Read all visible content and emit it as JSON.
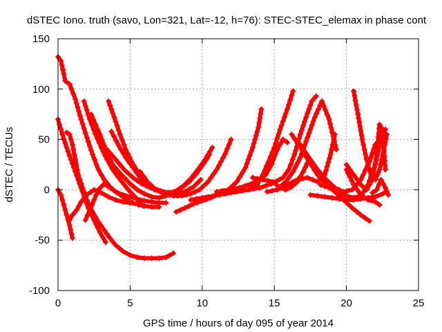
{
  "chart_data": {
    "type": "line",
    "title": "dSTEC Iono. truth (savo, Lon=321, Lat=-12, h=76): STEC-STEC_elemax in phase cont",
    "xlabel": "GPS time / hours of day 095 of year 2014",
    "ylabel": "dSTEC  / TECUs",
    "xlim": [
      0,
      25
    ],
    "ylim": [
      -100,
      150
    ],
    "xticks": [
      0,
      5,
      10,
      15,
      20,
      25
    ],
    "yticks": [
      -100,
      -50,
      0,
      50,
      100,
      150
    ],
    "xtick_labels": [
      "0",
      "5",
      "10",
      "15",
      "20",
      "25"
    ],
    "ytick_labels": [
      "-100",
      "-50",
      "0",
      "50",
      "100",
      "150"
    ],
    "grid": true,
    "legend": "none",
    "series_color": "#ff0000",
    "marker": "plus",
    "series": [
      {
        "x": [
          0.0,
          0.2,
          0.4,
          0.6,
          0.8,
          1.0
        ],
        "y": [
          0,
          -5,
          -15,
          -25,
          -35,
          -48
        ]
      },
      {
        "x": [
          0.0,
          0.3,
          0.6,
          0.9,
          1.2,
          1.5,
          1.8,
          2.1,
          2.5,
          2.9,
          3.3
        ],
        "y": [
          70,
          55,
          42,
          30,
          18,
          6,
          -6,
          -18,
          -30,
          -42,
          -52
        ]
      },
      {
        "x": [
          0.0,
          0.2,
          0.4,
          0.5,
          0.8,
          1.2,
          1.6,
          2.0,
          2.4,
          2.8,
          3.2,
          3.6,
          4.0,
          4.5,
          5.0,
          5.5,
          6.0,
          6.5,
          7.0,
          7.5
        ],
        "y": [
          132,
          128,
          115,
          108,
          105,
          90,
          70,
          52,
          35,
          20,
          10,
          3,
          -2,
          -5,
          -7,
          -9,
          -11,
          -12,
          -13,
          -13
        ]
      },
      {
        "x": [
          0.6,
          0.8,
          1.0,
          1.2,
          1.4,
          1.7,
          2.0,
          2.4,
          2.8,
          3.2,
          3.6,
          4.0,
          4.5,
          5.0,
          5.5,
          6.0,
          6.5,
          7.0,
          7.5,
          8.0
        ],
        "y": [
          57,
          55,
          45,
          30,
          15,
          2,
          -10,
          -22,
          -32,
          -40,
          -48,
          -55,
          -61,
          -65,
          -67,
          -68,
          -68,
          -68,
          -67,
          -63
        ]
      },
      {
        "x": [
          0.8,
          1.0,
          1.3,
          1.6,
          2.0,
          2.5,
          3.0,
          3.5,
          4.0,
          4.5,
          5.0,
          5.5,
          5.9
        ],
        "y": [
          -30,
          -25,
          -20,
          -12,
          -5,
          0,
          -3,
          -7,
          -10,
          -12,
          -13,
          -14,
          -16
        ]
      },
      {
        "x": [
          1.8,
          2.2,
          2.6,
          3.0,
          3.4,
          3.8,
          4.2,
          4.6,
          5.0,
          5.4,
          5.8
        ],
        "y": [
          88,
          70,
          55,
          42,
          30,
          20,
          12,
          5,
          -2,
          -8,
          -15
        ]
      },
      {
        "x": [
          2.3,
          2.6,
          2.9,
          3.2,
          3.5,
          3.8,
          4.2,
          4.6,
          5.0,
          5.5,
          6.0,
          6.5,
          7.0,
          7.5
        ],
        "y": [
          75,
          65,
          55,
          44,
          33,
          25,
          18,
          12,
          6,
          0,
          -4,
          -7,
          -8,
          -6
        ]
      },
      {
        "x": [
          1.9,
          2.2,
          2.5,
          2.8,
          3.2,
          3.6,
          4.0,
          4.4,
          4.8,
          5.2,
          5.6,
          6.0,
          6.5,
          7.0
        ],
        "y": [
          -30,
          -20,
          -10,
          0,
          6,
          2,
          -2,
          -6,
          -10,
          -13,
          -15,
          -16,
          -17,
          -17
        ]
      },
      {
        "x": [
          3.5,
          3.9,
          4.3,
          4.7,
          5.1,
          5.6,
          6.1,
          6.6,
          7.1,
          7.6,
          8.1,
          8.6,
          9.1,
          9.6,
          10.1,
          10.5
        ],
        "y": [
          88,
          72,
          55,
          40,
          28,
          16,
          7,
          2,
          -1,
          -3,
          -2,
          2,
          8,
          16,
          26,
          35
        ]
      },
      {
        "x": [
          3.7,
          4.2,
          4.7,
          5.2,
          5.7,
          6.2,
          6.7,
          7.2,
          7.7,
          8.2,
          8.7,
          9.2,
          9.7,
          10.2,
          10.7
        ],
        "y": [
          58,
          44,
          32,
          22,
          12,
          5,
          0,
          -2,
          -3,
          -1,
          4,
          11,
          20,
          30,
          42
        ]
      },
      {
        "x": [
          3.4,
          4.0,
          4.6,
          5.2,
          5.8,
          6.4,
          7.0,
          7.6,
          8.2,
          8.8,
          9.4,
          9.9
        ],
        "y": [
          40,
          30,
          20,
          12,
          6,
          2,
          -1,
          -3,
          -4,
          -2,
          3,
          10
        ]
      },
      {
        "x": [
          5.7,
          6.2,
          6.8,
          7.4,
          8.0,
          8.6,
          9.2,
          9.8,
          10.4,
          11.0,
          11.6,
          12.0
        ],
        "y": [
          18,
          8,
          0,
          -4,
          -6,
          -6,
          -4,
          0,
          8,
          20,
          36,
          50
        ]
      },
      {
        "x": [
          8.2,
          8.8,
          9.4,
          10.0,
          10.6,
          11.2,
          11.8,
          12.4,
          13.0,
          13.5,
          13.9,
          14.1
        ],
        "y": [
          -22,
          -18,
          -14,
          -11,
          -8,
          -4,
          0,
          8,
          22,
          42,
          62,
          80
        ]
      },
      {
        "x": [
          9.2,
          10.0,
          10.8,
          11.6,
          12.4,
          13.2,
          13.8,
          14.2,
          14.6,
          15.0,
          15.4,
          15.9,
          16.3
        ],
        "y": [
          -10,
          -8,
          -6,
          -4,
          -2,
          0,
          5,
          15,
          28,
          42,
          60,
          80,
          98
        ]
      },
      {
        "x": [
          11.0,
          11.8,
          12.6,
          13.4,
          14.0,
          14.4,
          14.8,
          15.2,
          15.6,
          15.9
        ],
        "y": [
          -2,
          0,
          2,
          6,
          10,
          15,
          25,
          40,
          50,
          47
        ]
      },
      {
        "x": [
          13.2,
          14.0,
          14.8,
          15.6,
          16.0,
          16.4,
          16.8,
          17.2,
          17.6,
          17.9
        ],
        "y": [
          0,
          2,
          6,
          12,
          20,
          35,
          55,
          72,
          88,
          93
        ]
      },
      {
        "x": [
          13.5,
          14.2,
          14.9,
          15.4,
          15.8,
          16.2,
          16.6,
          17.0,
          17.4
        ],
        "y": [
          12,
          10,
          8,
          2,
          0,
          3,
          8,
          18,
          30
        ]
      },
      {
        "x": [
          14.5,
          15.2,
          15.9,
          16.6,
          17.3,
          18.0,
          18.5,
          18.9,
          19.2
        ],
        "y": [
          -2,
          0,
          5,
          10,
          12,
          8,
          15,
          35,
          55
        ]
      },
      {
        "x": [
          15.3,
          15.8,
          16.3,
          16.8,
          17.3,
          17.8,
          18.3,
          18.8,
          19.3
        ],
        "y": [
          2,
          8,
          18,
          32,
          52,
          72,
          88,
          70,
          40
        ]
      },
      {
        "x": [
          16.2,
          16.8,
          17.4,
          18.0,
          18.6,
          19.2,
          19.8,
          20.4,
          21.0,
          21.6
        ],
        "y": [
          55,
          42,
          28,
          15,
          5,
          -2,
          -10,
          -18,
          -25,
          -31
        ]
      },
      {
        "x": [
          16.8,
          17.4,
          18.0,
          18.6,
          19.2,
          19.8,
          20.4,
          21.0,
          21.6,
          22.0
        ],
        "y": [
          45,
          32,
          20,
          10,
          2,
          -2,
          0,
          10,
          28,
          45
        ]
      },
      {
        "x": [
          17.5,
          18.0,
          18.5,
          19.0,
          19.5,
          20.0,
          20.5,
          21.0,
          21.5,
          22.0,
          22.5,
          22.8
        ],
        "y": [
          -5,
          -6,
          -7,
          -8,
          -9,
          -10,
          -10,
          -9,
          -8,
          -7,
          -4,
          -2
        ]
      },
      {
        "x": [
          18.2,
          18.8,
          19.4,
          20.0,
          20.5,
          21.0,
          21.5,
          22.0,
          22.4,
          22.7
        ],
        "y": [
          5,
          2,
          -2,
          -6,
          -8,
          -6,
          5,
          25,
          50,
          60
        ]
      },
      {
        "x": [
          20.5,
          20.8,
          21.1,
          21.4,
          21.7,
          22.0,
          22.3,
          22.6,
          22.8
        ],
        "y": [
          98,
          75,
          50,
          30,
          15,
          10,
          20,
          40,
          55
        ]
      },
      {
        "x": [
          20.0,
          20.5,
          21.0,
          21.4,
          21.8,
          22.1,
          22.3,
          22.5,
          22.7
        ],
        "y": [
          25,
          15,
          5,
          0,
          10,
          35,
          65,
          60,
          20
        ]
      },
      {
        "x": [
          20.0,
          20.5,
          21.0,
          21.5,
          22.0,
          22.3
        ],
        "y": [
          20,
          5,
          -5,
          -10,
          -12,
          -15
        ]
      },
      {
        "x": [
          21.8,
          22.1,
          22.4,
          22.7,
          22.9
        ],
        "y": [
          -3,
          0,
          10,
          2,
          -5
        ]
      }
    ]
  }
}
